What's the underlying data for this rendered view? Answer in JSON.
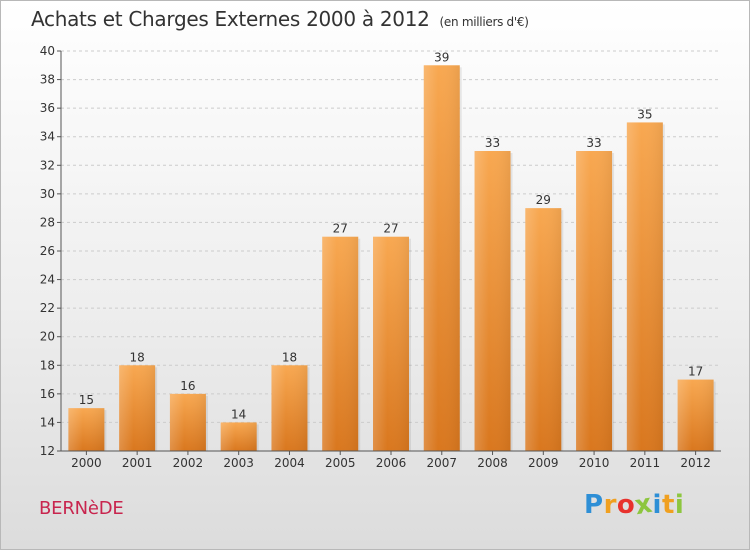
{
  "header": {
    "title": "Achats et Charges Externes 2000 à 2012",
    "subtitle": "(en milliers d'€)"
  },
  "footer": {
    "commune": "BERNèDE",
    "logo_letters": [
      "P",
      "r",
      "o",
      "x",
      "i",
      "t",
      "i"
    ],
    "logo_colors": [
      "#2e8fd6",
      "#f0a020",
      "#e8322d",
      "#8dc63f",
      "#2e8fd6",
      "#f0a020",
      "#8dc63f"
    ]
  },
  "colors": {
    "bar_top": "#f8a851",
    "bar_bottom": "#d9771e",
    "grid": "#cccccc",
    "axis": "#555555",
    "commune": "#c8254e"
  },
  "chart_data": {
    "type": "bar",
    "title": "Achats et Charges Externes 2000 à 2012",
    "unit": "(en milliers d'€)",
    "categories": [
      "2000",
      "2001",
      "2002",
      "2003",
      "2004",
      "2005",
      "2006",
      "2007",
      "2008",
      "2009",
      "2010",
      "2011",
      "2012"
    ],
    "values": [
      15,
      18,
      16,
      14,
      18,
      27,
      27,
      39,
      33,
      29,
      33,
      35,
      17
    ],
    "ylim": [
      12,
      40
    ],
    "yticks": [
      12,
      14,
      16,
      18,
      20,
      22,
      24,
      26,
      28,
      30,
      32,
      34,
      36,
      38,
      40
    ],
    "grid": true,
    "xlabel": "",
    "ylabel": ""
  }
}
